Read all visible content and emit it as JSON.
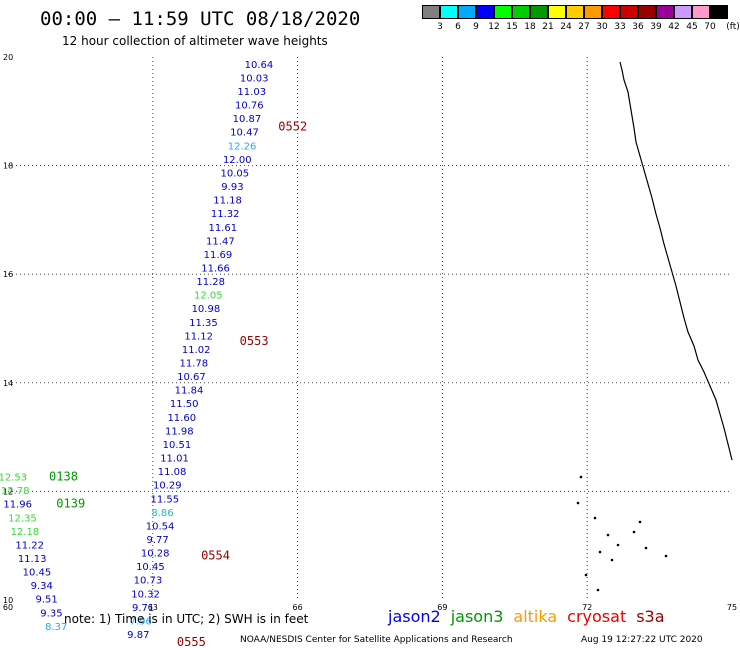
{
  "title": "00:00 – 11:59 UTC 08/18/2020",
  "subtitle": "12 hour collection of altimeter wave heights",
  "legend": {
    "unit": "(ft)",
    "colors": [
      "#808080",
      "#00ffff",
      "#00aaff",
      "#0000ff",
      "#00ff00",
      "#00cc00",
      "#009900",
      "#ffff00",
      "#ffcc00",
      "#ff9900",
      "#ff0000",
      "#cc0000",
      "#990000",
      "#990099",
      "#cc99ff",
      "#ff99cc",
      "#000000"
    ],
    "labels": [
      "3",
      "6",
      "9",
      "12",
      "15",
      "18",
      "21",
      "24",
      "27",
      "30",
      "33",
      "36",
      "39",
      "42",
      "45",
      "70"
    ]
  },
  "note": "note: 1) Time is in UTC; 2) SWH is in feet",
  "satellites": [
    {
      "name": "jason2",
      "color": "#0000ee"
    },
    {
      "name": "jason3",
      "color": "#009900"
    },
    {
      "name": "altika",
      "color": "#ff9900"
    },
    {
      "name": "cryosat",
      "color": "#ee0000"
    },
    {
      "name": "s3a",
      "color": "#990000"
    }
  ],
  "credit": "NOAA/NESDIS Center for Satellite Applications and Research",
  "timestamp": "Aug 19 12:27:22 UTC 2020",
  "map": {
    "x_ticks": [
      "60",
      "63",
      "66",
      "69",
      "72",
      "75"
    ],
    "y_ticks": [
      "20",
      "18",
      "16",
      "14",
      "12",
      "10"
    ]
  },
  "chart_data": {
    "type": "scatter",
    "x_label": "",
    "y_label": "",
    "x_range": [
      60,
      75
    ],
    "y_range": [
      10,
      20
    ],
    "tracks": [
      {
        "pass": "0552",
        "pass_color": "#990000",
        "pass_pos": [
          65.6,
          18.65
        ],
        "points": [
          {
            "x": 65.2,
            "y": 19.8,
            "v": "10.64",
            "c": "#0000cc"
          },
          {
            "x": 65.1,
            "y": 19.55,
            "v": "10.03",
            "c": "#0000cc"
          },
          {
            "x": 65.05,
            "y": 19.3,
            "v": "11.03",
            "c": "#0000cc"
          },
          {
            "x": 65.0,
            "y": 19.05,
            "v": "10.76",
            "c": "#0000cc"
          },
          {
            "x": 64.95,
            "y": 18.8,
            "v": "10.87",
            "c": "#0000cc"
          },
          {
            "x": 64.9,
            "y": 18.55,
            "v": "10.47",
            "c": "#0000cc"
          },
          {
            "x": 64.85,
            "y": 18.3,
            "v": "12.26",
            "c": "#22aaff"
          },
          {
            "x": 64.75,
            "y": 18.05,
            "v": "12.00",
            "c": "#0000cc"
          },
          {
            "x": 64.7,
            "y": 17.8,
            "v": "10.05",
            "c": "#0000cc"
          },
          {
            "x": 64.65,
            "y": 17.55,
            "v": "9.93",
            "c": "#0000cc"
          },
          {
            "x": 64.55,
            "y": 17.3,
            "v": "11.18",
            "c": "#0000cc"
          },
          {
            "x": 64.5,
            "y": 17.05,
            "v": "11.32",
            "c": "#0000cc"
          },
          {
            "x": 64.45,
            "y": 16.8,
            "v": "11.61",
            "c": "#0000cc"
          },
          {
            "x": 64.4,
            "y": 16.55,
            "v": "11.47",
            "c": "#0000cc"
          },
          {
            "x": 64.35,
            "y": 16.3,
            "v": "11.69",
            "c": "#0000cc"
          },
          {
            "x": 64.3,
            "y": 16.05,
            "v": "11.66",
            "c": "#0000cc"
          },
          {
            "x": 64.2,
            "y": 15.8,
            "v": "11.28",
            "c": "#0000cc"
          },
          {
            "x": 64.15,
            "y": 15.55,
            "v": "12.05",
            "c": "#33dd33"
          },
          {
            "x": 64.1,
            "y": 15.3,
            "v": "10.98",
            "c": "#0000cc"
          },
          {
            "x": 64.05,
            "y": 15.05,
            "v": "11.35",
            "c": "#0000cc"
          }
        ]
      },
      {
        "pass": "0553",
        "pass_color": "#990000",
        "pass_pos": [
          64.8,
          14.7
        ],
        "points": [
          {
            "x": 63.95,
            "y": 14.8,
            "v": "11.12",
            "c": "#0000cc"
          },
          {
            "x": 63.9,
            "y": 14.55,
            "v": "11.02",
            "c": "#0000cc"
          },
          {
            "x": 63.85,
            "y": 14.3,
            "v": "11.78",
            "c": "#0000cc"
          },
          {
            "x": 63.8,
            "y": 14.05,
            "v": "10.67",
            "c": "#0000cc"
          },
          {
            "x": 63.75,
            "y": 13.8,
            "v": "11.84",
            "c": "#0000cc"
          },
          {
            "x": 63.65,
            "y": 13.55,
            "v": "11.50",
            "c": "#0000cc"
          },
          {
            "x": 63.6,
            "y": 13.3,
            "v": "11.60",
            "c": "#0000cc"
          },
          {
            "x": 63.55,
            "y": 13.05,
            "v": "11.98",
            "c": "#0000cc"
          },
          {
            "x": 63.5,
            "y": 12.8,
            "v": "10.51",
            "c": "#0000cc"
          },
          {
            "x": 63.45,
            "y": 12.55,
            "v": "11.01",
            "c": "#0000cc"
          },
          {
            "x": 63.4,
            "y": 12.3,
            "v": "11.08",
            "c": "#0000cc"
          },
          {
            "x": 63.3,
            "y": 12.05,
            "v": "10.29",
            "c": "#0000cc"
          },
          {
            "x": 63.25,
            "y": 11.8,
            "v": "11.55",
            "c": "#0000cc"
          },
          {
            "x": 63.2,
            "y": 11.55,
            "v": "8.86",
            "c": "#22bbbb"
          },
          {
            "x": 63.15,
            "y": 11.3,
            "v": "10.54",
            "c": "#0000cc"
          },
          {
            "x": 63.1,
            "y": 11.05,
            "v": "9.77",
            "c": "#0000cc"
          }
        ]
      },
      {
        "pass": "0554",
        "pass_color": "#990000",
        "pass_pos": [
          64.0,
          10.75
        ],
        "points": [
          {
            "x": 63.05,
            "y": 10.8,
            "v": "10.28",
            "c": "#0000cc"
          },
          {
            "x": 62.95,
            "y": 10.55,
            "v": "10.45",
            "c": "#0000cc"
          },
          {
            "x": 62.9,
            "y": 10.3,
            "v": "10.73",
            "c": "#0000cc"
          },
          {
            "x": 62.85,
            "y": 10.05,
            "v": "10.32",
            "c": "#0000cc"
          },
          {
            "x": 62.8,
            "y": 9.8,
            "v": "9.71",
            "c": "#0000cc"
          },
          {
            "x": 62.75,
            "y": 9.55,
            "v": "7.96",
            "c": "#22aaff"
          },
          {
            "x": 62.7,
            "y": 9.3,
            "v": "9.87",
            "c": "#0000cc"
          }
        ]
      },
      {
        "pass": "0555",
        "pass_color": "#990000",
        "pass_pos": [
          63.5,
          9.15
        ],
        "points": []
      },
      {
        "pass": "0138",
        "pass_color": "#009900",
        "pass_pos": [
          60.85,
          12.2
        ],
        "points": [
          {
            "x": 60.1,
            "y": 12.2,
            "v": "12.53",
            "c": "#33dd33"
          },
          {
            "x": 60.15,
            "y": 11.95,
            "v": "12.78",
            "c": "#33dd33"
          }
        ]
      },
      {
        "pass": "0139",
        "pass_color": "#009900",
        "pass_pos": [
          61.0,
          11.7
        ],
        "points": [
          {
            "x": 60.2,
            "y": 11.7,
            "v": "11.96",
            "c": "#0000cc"
          },
          {
            "x": 60.3,
            "y": 11.45,
            "v": "12.35",
            "c": "#33dd33"
          },
          {
            "x": 60.35,
            "y": 11.2,
            "v": "12.18",
            "c": "#33dd33"
          },
          {
            "x": 60.45,
            "y": 10.95,
            "v": "11.22",
            "c": "#0000cc"
          },
          {
            "x": 60.5,
            "y": 10.7,
            "v": "11.13",
            "c": "#0000cc"
          },
          {
            "x": 60.6,
            "y": 10.45,
            "v": "10.45",
            "c": "#0000cc"
          },
          {
            "x": 60.7,
            "y": 10.2,
            "v": "9.34",
            "c": "#0000cc"
          },
          {
            "x": 60.8,
            "y": 9.95,
            "v": "9.51",
            "c": "#0000cc"
          },
          {
            "x": 60.9,
            "y": 9.7,
            "v": "9.35",
            "c": "#0000cc"
          },
          {
            "x": 61.0,
            "y": 9.45,
            "v": "8.37",
            "c": "#22aaff"
          }
        ]
      }
    ]
  }
}
